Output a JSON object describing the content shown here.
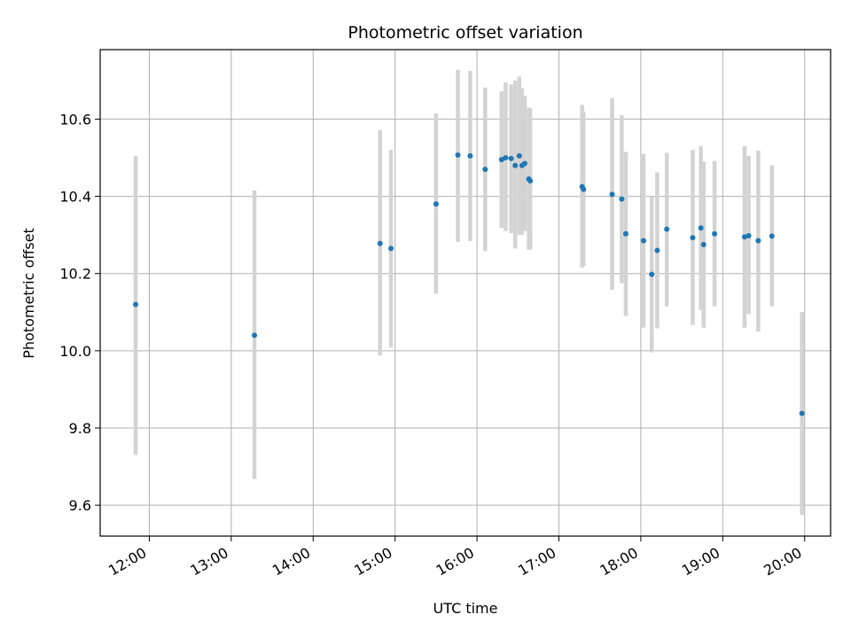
{
  "chart_data": {
    "type": "scatter",
    "title": "Photometric offset variation",
    "xlabel": "UTC time",
    "ylabel": "Photometric offset",
    "x_tick_labels": [
      "12:00",
      "13:00",
      "14:00",
      "15:00",
      "16:00",
      "17:00",
      "18:00",
      "19:00",
      "20:00"
    ],
    "x_ticks": [
      "12:00",
      "13:00",
      "14:00",
      "15:00",
      "16:00",
      "17:00",
      "18:00",
      "19:00",
      "20:00"
    ],
    "y_ticks": [
      9.6,
      9.8,
      10.0,
      10.2,
      10.4,
      10.6
    ],
    "y_tick_labels": [
      "9.6",
      "9.8",
      "10.0",
      "10.2",
      "10.4",
      "10.6"
    ],
    "xlim": [
      "11:24",
      "20:19"
    ],
    "ylim": [
      9.52,
      10.78
    ],
    "grid": true,
    "colors": {
      "point": "#1f77b4",
      "errorbar": "#d3d3d3",
      "grid": "#b0b0b0"
    },
    "points": [
      {
        "x": "11:50",
        "y": 10.12,
        "yerr_low": 9.73,
        "yerr_high": 10.505
      },
      {
        "x": "13:17",
        "y": 10.04,
        "yerr_low": 9.668,
        "yerr_high": 10.415
      },
      {
        "x": "14:49",
        "y": 10.278,
        "yerr_low": 9.988,
        "yerr_high": 10.572
      },
      {
        "x": "14:57",
        "y": 10.265,
        "yerr_low": 10.008,
        "yerr_high": 10.52
      },
      {
        "x": "15:30",
        "y": 10.38,
        "yerr_low": 10.148,
        "yerr_high": 10.615
      },
      {
        "x": "15:46",
        "y": 10.507,
        "yerr_low": 10.282,
        "yerr_high": 10.728
      },
      {
        "x": "15:55",
        "y": 10.505,
        "yerr_low": 10.284,
        "yerr_high": 10.725
      },
      {
        "x": "16:06",
        "y": 10.47,
        "yerr_low": 10.258,
        "yerr_high": 10.682
      },
      {
        "x": "16:18",
        "y": 10.495,
        "yerr_low": 10.318,
        "yerr_high": 10.672
      },
      {
        "x": "16:21",
        "y": 10.5,
        "yerr_low": 10.31,
        "yerr_high": 10.695
      },
      {
        "x": "16:25",
        "y": 10.498,
        "yerr_low": 10.305,
        "yerr_high": 10.69
      },
      {
        "x": "16:28",
        "y": 10.48,
        "yerr_low": 10.265,
        "yerr_high": 10.7
      },
      {
        "x": "16:31",
        "y": 10.505,
        "yerr_low": 10.3,
        "yerr_high": 10.71
      },
      {
        "x": "16:33",
        "y": 10.48,
        "yerr_low": 10.3,
        "yerr_high": 10.68
      },
      {
        "x": "16:35",
        "y": 10.485,
        "yerr_low": 10.31,
        "yerr_high": 10.66
      },
      {
        "x": "16:38",
        "y": 10.445,
        "yerr_low": 10.262,
        "yerr_high": 10.63
      },
      {
        "x": "16:39",
        "y": 10.44,
        "yerr_low": 10.262,
        "yerr_high": 10.628
      },
      {
        "x": "17:17",
        "y": 10.425,
        "yerr_low": 10.215,
        "yerr_high": 10.637
      },
      {
        "x": "17:18",
        "y": 10.418,
        "yerr_low": 10.22,
        "yerr_high": 10.62
      },
      {
        "x": "17:39",
        "y": 10.405,
        "yerr_low": 10.158,
        "yerr_high": 10.655
      },
      {
        "x": "17:46",
        "y": 10.393,
        "yerr_low": 10.175,
        "yerr_high": 10.61
      },
      {
        "x": "17:49",
        "y": 10.303,
        "yerr_low": 10.09,
        "yerr_high": 10.515
      },
      {
        "x": "18:02",
        "y": 10.285,
        "yerr_low": 10.06,
        "yerr_high": 10.51
      },
      {
        "x": "18:08",
        "y": 10.198,
        "yerr_low": 9.996,
        "yerr_high": 10.4
      },
      {
        "x": "18:12",
        "y": 10.26,
        "yerr_low": 10.058,
        "yerr_high": 10.462
      },
      {
        "x": "18:19",
        "y": 10.315,
        "yerr_low": 10.115,
        "yerr_high": 10.513
      },
      {
        "x": "18:38",
        "y": 10.293,
        "yerr_low": 10.067,
        "yerr_high": 10.52
      },
      {
        "x": "18:44",
        "y": 10.318,
        "yerr_low": 10.105,
        "yerr_high": 10.53
      },
      {
        "x": "18:46",
        "y": 10.275,
        "yerr_low": 10.06,
        "yerr_high": 10.49
      },
      {
        "x": "18:54",
        "y": 10.303,
        "yerr_low": 10.115,
        "yerr_high": 10.492
      },
      {
        "x": "19:16",
        "y": 10.295,
        "yerr_low": 10.06,
        "yerr_high": 10.53
      },
      {
        "x": "19:19",
        "y": 10.298,
        "yerr_low": 10.095,
        "yerr_high": 10.505
      },
      {
        "x": "19:26",
        "y": 10.285,
        "yerr_low": 10.05,
        "yerr_high": 10.518
      },
      {
        "x": "19:36",
        "y": 10.297,
        "yerr_low": 10.115,
        "yerr_high": 10.48
      },
      {
        "x": "19:58",
        "y": 9.838,
        "yerr_low": 9.575,
        "yerr_high": 10.1
      }
    ]
  }
}
